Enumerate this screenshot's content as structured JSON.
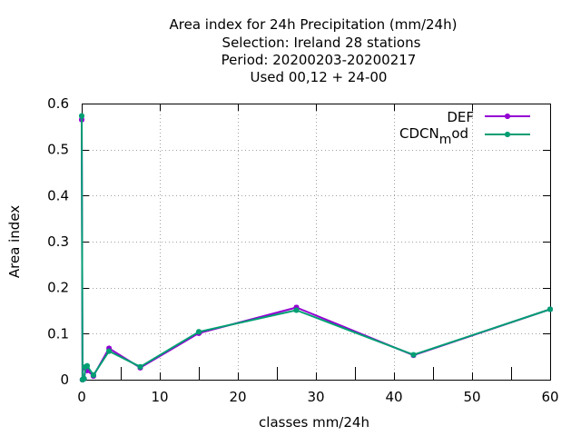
{
  "chart_data": {
    "type": "line",
    "title_lines": [
      "Area index  for 24h Precipitation (mm/24h)",
      "Selection: Ireland      28 stations",
      "Period: 20200203-20200217",
      "Used  00,12  + 24-00"
    ],
    "xlabel": "classes mm/24h",
    "ylabel": "Area index",
    "xlim": [
      0,
      60
    ],
    "ylim": [
      0,
      0.6
    ],
    "xticks": [
      0,
      10,
      20,
      30,
      40,
      50,
      60
    ],
    "yticks": [
      0,
      0.1,
      0.2,
      0.3,
      0.4,
      0.5,
      0.6
    ],
    "ytick_labels": [
      "0",
      "0.1",
      "0.2",
      "0.3",
      "0.4",
      "0.5",
      "0.6"
    ],
    "grid": true,
    "legend_position": "top-right",
    "series": [
      {
        "name": "DEF",
        "color": "#9400d3",
        "x": [
          0,
          0.1,
          0.3,
          0.5,
          0.7,
          1.5,
          3.5,
          7.5,
          15,
          27.5,
          42.5,
          60
        ],
        "y": [
          0.565,
          0.0,
          0.002,
          0.025,
          0.02,
          0.008,
          0.068,
          0.026,
          0.101,
          0.157,
          0.053,
          0.153
        ]
      },
      {
        "name": "CDCN_mod",
        "name_main": "CDCN",
        "name_sub": "m",
        "name_tail": "od",
        "color": "#009e73",
        "x": [
          0,
          0.1,
          0.3,
          0.5,
          0.7,
          1.5,
          3.5,
          7.5,
          15,
          27.5,
          42.5,
          60
        ],
        "y": [
          0.573,
          0.0,
          0.002,
          0.028,
          0.03,
          0.01,
          0.062,
          0.028,
          0.104,
          0.151,
          0.054,
          0.153
        ]
      }
    ]
  }
}
